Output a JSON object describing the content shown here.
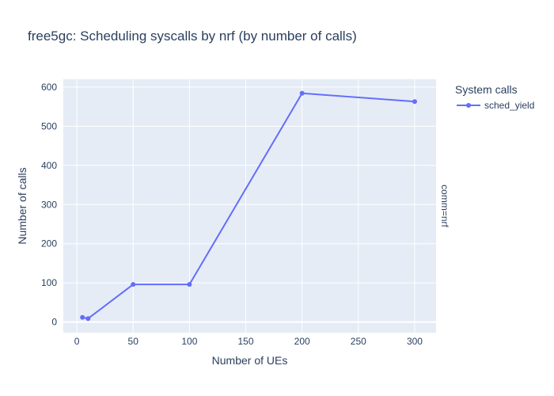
{
  "chart_data": {
    "type": "line",
    "title": "free5gc: Scheduling syscalls by nrf (by number of calls)",
    "xlabel": "Number of UEs",
    "ylabel": "Number of calls",
    "xlim": [
      -12,
      319
    ],
    "ylim": [
      -27,
      620
    ],
    "x_ticks": [
      0,
      50,
      100,
      150,
      200,
      250,
      300
    ],
    "y_ticks": [
      0,
      100,
      200,
      300,
      400,
      500,
      600
    ],
    "grid": true,
    "legend": {
      "title": "System calls",
      "placement": "top-right",
      "entries": [
        "sched_yield"
      ]
    },
    "facet_label": "comm=nrf",
    "series": [
      {
        "name": "sched_yield",
        "color": "#636efa",
        "x": [
          5,
          10,
          50,
          100,
          200,
          300
        ],
        "y": [
          12,
          9,
          96,
          96,
          584,
          563
        ]
      }
    ]
  }
}
